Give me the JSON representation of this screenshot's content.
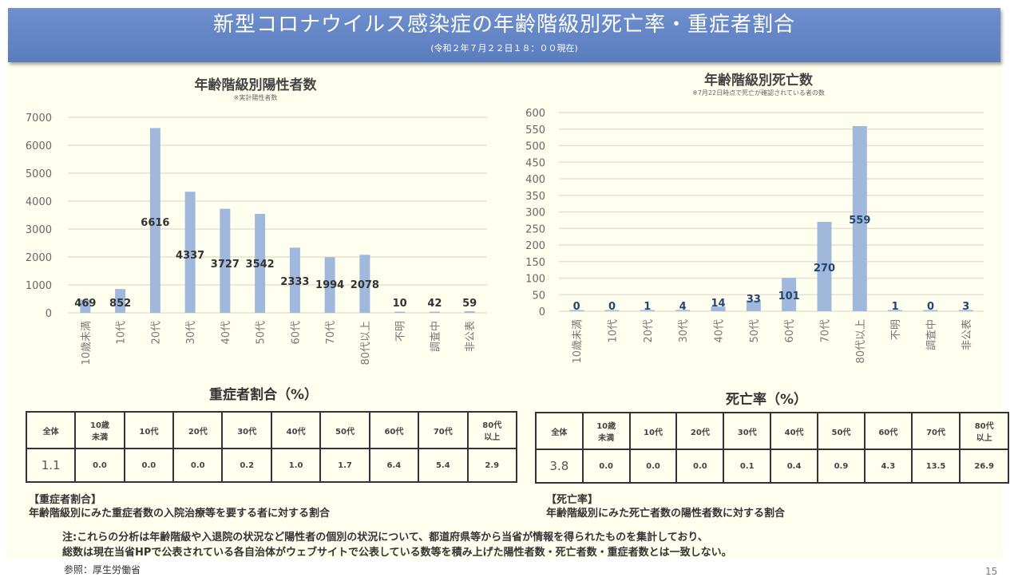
{
  "header": {
    "title": "新型コロナウイルス感染症の年齢階級別死亡率・重症者割合",
    "subtitle": "(令和２年７月２２日１８：００現在)"
  },
  "chart_data": [
    {
      "type": "bar",
      "title": "年齢階級別陽性者数",
      "subtitle": "※実計陽性者数",
      "categories": [
        "10歳未満",
        "10代",
        "20代",
        "30代",
        "40代",
        "50代",
        "60代",
        "70代",
        "80代以上",
        "不明",
        "調査中",
        "非公表"
      ],
      "values": [
        469,
        852,
        6616,
        4337,
        3727,
        3542,
        2333,
        1994,
        2078,
        10,
        42,
        59
      ],
      "yticks": [
        0,
        1000,
        2000,
        3000,
        4000,
        5000,
        6000,
        7000
      ],
      "ylim": [
        0,
        7000
      ],
      "xlabel": "",
      "ylabel": "",
      "grid": true,
      "bar_color": "#9fb8dc"
    },
    {
      "type": "bar",
      "title": "年齢階級別死亡数",
      "subtitle": "※7月22日時点で死亡が確認されている者の数",
      "categories": [
        "10歳未満",
        "10代",
        "20代",
        "30代",
        "40代",
        "50代",
        "60代",
        "70代",
        "80代以上",
        "不明",
        "調査中",
        "非公表"
      ],
      "values": [
        0,
        0,
        1,
        4,
        14,
        33,
        101,
        270,
        559,
        1,
        0,
        3
      ],
      "yticks": [
        0,
        50,
        100,
        150,
        200,
        250,
        300,
        350,
        400,
        450,
        500,
        550,
        600
      ],
      "ylim": [
        0,
        600
      ],
      "xlabel": "",
      "ylabel": "",
      "grid": true,
      "bar_color": "#9fb8dc"
    }
  ],
  "severe_table": {
    "title": "重症者割合（%）",
    "headers": [
      "全体",
      "10歳\n未満",
      "10代",
      "20代",
      "30代",
      "40代",
      "50代",
      "60代",
      "70代",
      "80代\n以上"
    ],
    "values": [
      "1.1",
      "0.0",
      "0.0",
      "0.0",
      "0.2",
      "1.0",
      "1.7",
      "6.4",
      "5.4",
      "2.9"
    ],
    "note_title": "【重症者割合】",
    "note_text": "年齢階級別にみた重症者数の入院治療等を要する者に対する割合"
  },
  "fatality_table": {
    "title": "死亡率（%）",
    "headers": [
      "全体",
      "10歳\n未満",
      "10代",
      "20代",
      "30代",
      "40代",
      "50代",
      "60代",
      "70代",
      "80代\n以上"
    ],
    "values": [
      "3.8",
      "0.0",
      "0.0",
      "0.0",
      "0.1",
      "0.4",
      "0.9",
      "4.3",
      "13.5",
      "26.9"
    ],
    "note_title": "【死亡率】",
    "note_text": "年齢階級別にみた死亡者数の陽性者数に対する割合"
  },
  "footnote": {
    "line1": "注:これらの分析は年齢階級や入退院の状況など陽性者の個別の状況について、都道府県等から当省が情報を得られたものを集計しており、",
    "line2": "総数は現在当省HPで公表されている各自治体がウェブサイトで公表している数等を積み上げた陽性者数・死亡者数・重症者数とは一致しない。"
  },
  "source": "参照：厚生労働省",
  "page_number": "15"
}
